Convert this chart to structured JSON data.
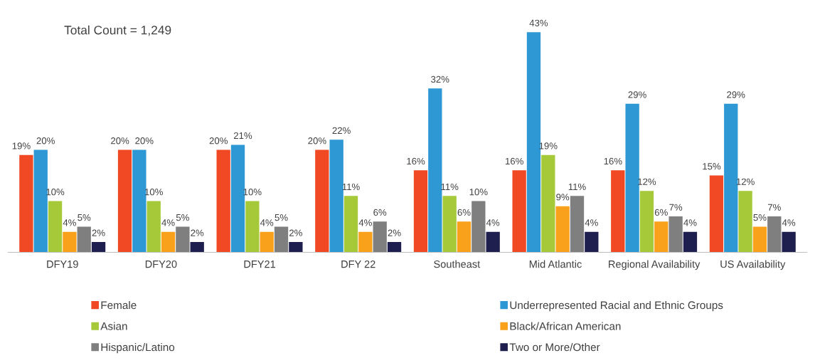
{
  "chart_data": {
    "type": "bar",
    "annotations": [
      "Total Count = 1,249"
    ],
    "categories": [
      "DFY19",
      "DFY20",
      "DFY21",
      "DFY 22",
      "Southeast",
      "Mid Atlantic",
      "Regional Availability",
      "US Availability"
    ],
    "series": [
      {
        "name": "Female",
        "color": "#f04923",
        "values": [
          19,
          20,
          20,
          20,
          16,
          16,
          16,
          15
        ],
        "value_labels": [
          "19%",
          "20%",
          "20%",
          "20%",
          "16%",
          "16%",
          "16%",
          "15%"
        ]
      },
      {
        "name": "Underrepresented Racial and Ethnic Groups",
        "color": "#2e98d4",
        "values": [
          20,
          20,
          21,
          22,
          32,
          43,
          29,
          29
        ],
        "value_labels": [
          "20%",
          "20%",
          "21%",
          "22%",
          "32%",
          "43%",
          "29%",
          "29%"
        ]
      },
      {
        "name": "Asian",
        "color": "#a5c939",
        "values": [
          10,
          10,
          10,
          11,
          11,
          19,
          12,
          12
        ],
        "value_labels": [
          "10%",
          "10%",
          "10%",
          "11%",
          "11%",
          "19%",
          "12%",
          "12%"
        ]
      },
      {
        "name": "Black/African American",
        "color": "#f9a11b",
        "values": [
          4,
          4,
          4,
          4,
          6,
          9,
          6,
          5
        ],
        "value_labels": [
          "4%",
          "4%",
          "4%",
          "4%",
          "6%",
          "9%",
          "6%",
          "5%"
        ]
      },
      {
        "name": "Hispanic/Latino",
        "color": "#7f7f7f",
        "values": [
          5,
          5,
          5,
          6,
          10,
          11,
          7,
          7
        ],
        "value_labels": [
          "5%",
          "5%",
          "5%",
          "6%",
          "10%",
          "11%",
          "7%",
          "7%"
        ]
      },
      {
        "name": "Two or More/Other",
        "color": "#1f1f4f",
        "values": [
          2,
          2,
          2,
          2,
          4,
          4,
          4,
          4
        ],
        "value_labels": [
          "2%",
          "2%",
          "2%",
          "2%",
          "4%",
          "4%",
          "4%",
          "4%"
        ]
      }
    ],
    "legend": "bottom"
  }
}
